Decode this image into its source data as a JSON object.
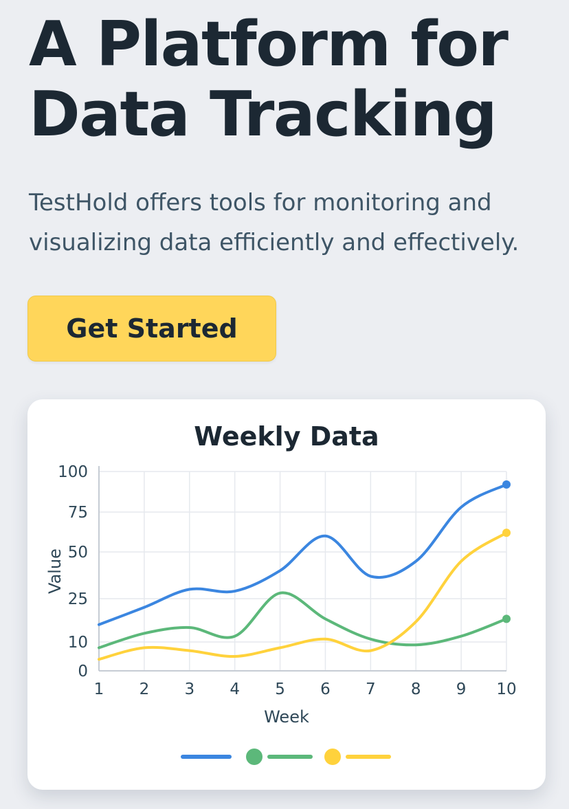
{
  "hero": {
    "title_line1": "A Platform for",
    "title_line2": "Data Tracking",
    "subtitle_line1": "TestHold offers tools for monitoring and",
    "subtitle_line2": "visualizing data efficiently and effectively.",
    "cta_label": "Get Started"
  },
  "colors": {
    "background": "#eceef2",
    "cta": "#ffd65a",
    "series_blue": "#3b86e0",
    "series_green": "#5cb87a",
    "series_yellow": "#ffd23c"
  },
  "chart_data": {
    "type": "line",
    "title": "Weekly Data",
    "xlabel": "Week",
    "ylabel": "Value",
    "x": [
      1,
      2,
      3,
      4,
      5,
      6,
      7,
      8,
      9,
      10
    ],
    "y_ticks": [
      "0",
      "10",
      "25",
      "50",
      "75",
      "100"
    ],
    "grid": true,
    "legend_position": "bottom",
    "series": [
      {
        "color": "#3b86e0",
        "legend_marker": "line",
        "values": [
          16,
          22,
          30,
          29,
          40,
          60,
          37,
          45,
          78,
          92
        ]
      },
      {
        "color": "#5cb87a",
        "legend_marker": "dot-line",
        "values": [
          8,
          13,
          15,
          12,
          28,
          18,
          11,
          9,
          12,
          18
        ]
      },
      {
        "color": "#ffd23c",
        "legend_marker": "dot-line",
        "values": [
          4,
          8,
          7,
          5,
          8,
          11,
          7,
          17,
          45,
          62
        ]
      }
    ]
  }
}
